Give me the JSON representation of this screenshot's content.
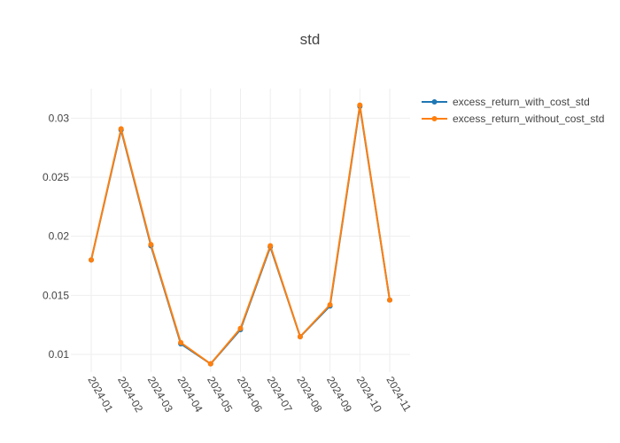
{
  "chart_data": {
    "type": "line",
    "title": "std",
    "xlabel": "",
    "ylabel": "",
    "categories": [
      "2024-01",
      "2024-02",
      "2024-03",
      "2024-04",
      "2024-05",
      "2024-06",
      "2024-07",
      "2024-08",
      "2024-09",
      "2024-10",
      "2024-11"
    ],
    "yticks": [
      0.01,
      0.015,
      0.02,
      0.025,
      0.03
    ],
    "ylim": [
      0.0085,
      0.0325
    ],
    "grid": true,
    "legend_position": "top-right",
    "series": [
      {
        "name": "excess_return_with_cost_std",
        "color": "#1f77b4",
        "values": [
          0.018,
          0.029,
          0.0192,
          0.0109,
          0.0092,
          0.0121,
          0.0191,
          0.0115,
          0.0141,
          0.031,
          0.0146
        ]
      },
      {
        "name": "excess_return_without_cost_std",
        "color": "#ff7f0e",
        "values": [
          0.018,
          0.0291,
          0.0193,
          0.011,
          0.0092,
          0.0122,
          0.0192,
          0.0115,
          0.0142,
          0.0311,
          0.0146
        ]
      }
    ]
  }
}
